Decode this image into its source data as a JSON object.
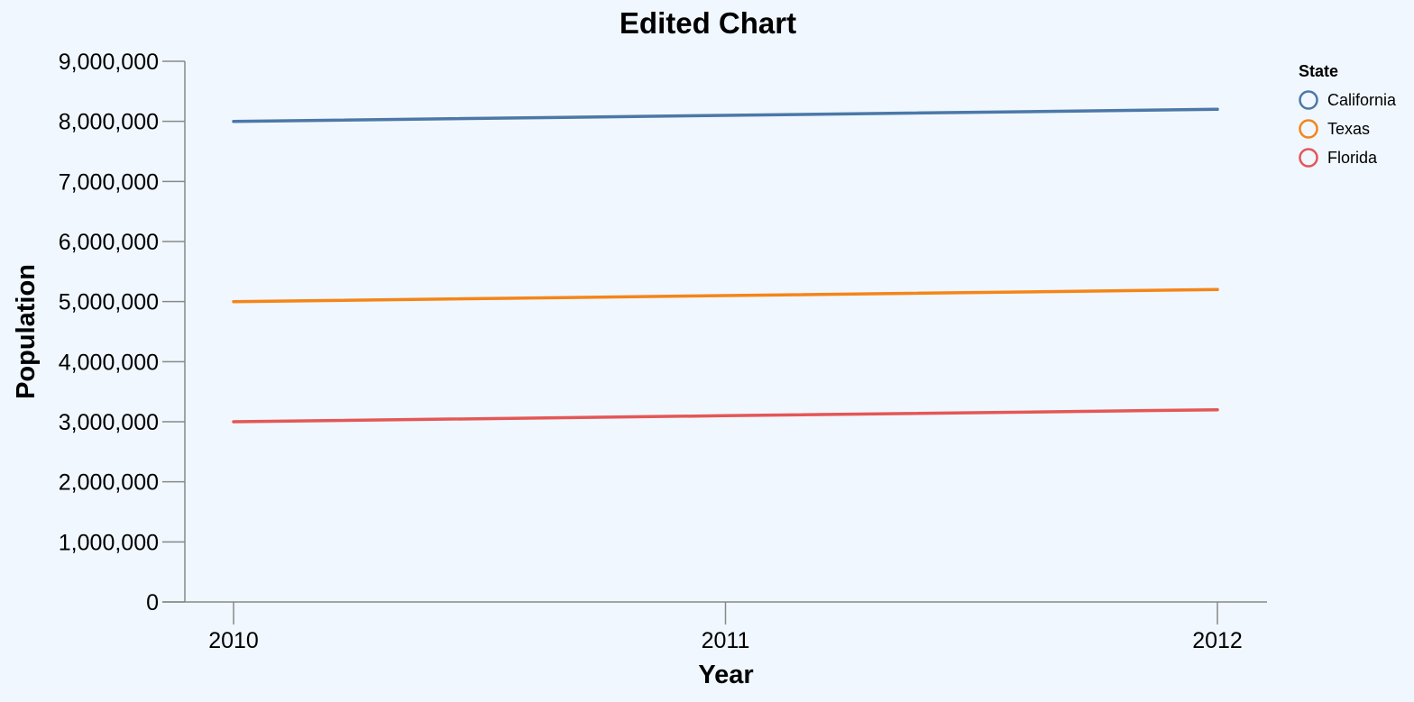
{
  "chart_data": {
    "type": "line",
    "title": "Edited Chart",
    "xlabel": "Year",
    "ylabel": "Population",
    "x": [
      "2010",
      "2011",
      "2012"
    ],
    "ylim": [
      0,
      9000000
    ],
    "yticks": [
      0,
      1000000,
      2000000,
      3000000,
      4000000,
      5000000,
      6000000,
      7000000,
      8000000,
      9000000
    ],
    "ytick_labels": [
      "0",
      "1,000,000",
      "2,000,000",
      "3,000,000",
      "4,000,000",
      "5,000,000",
      "6,000,000",
      "7,000,000",
      "8,000,000",
      "9,000,000"
    ],
    "grid": false,
    "legend": {
      "title": "State",
      "placement": "top-right"
    },
    "series": [
      {
        "name": "California",
        "color": "#4c78a8",
        "values": [
          8000000,
          8100000,
          8200000
        ]
      },
      {
        "name": "Texas",
        "color": "#f58518",
        "values": [
          5000000,
          5100000,
          5200000
        ]
      },
      {
        "name": "Florida",
        "color": "#e45756",
        "values": [
          3000000,
          3100000,
          3200000
        ]
      }
    ]
  },
  "colors": {
    "background": "#f0f7fe",
    "axis": "#888888"
  }
}
